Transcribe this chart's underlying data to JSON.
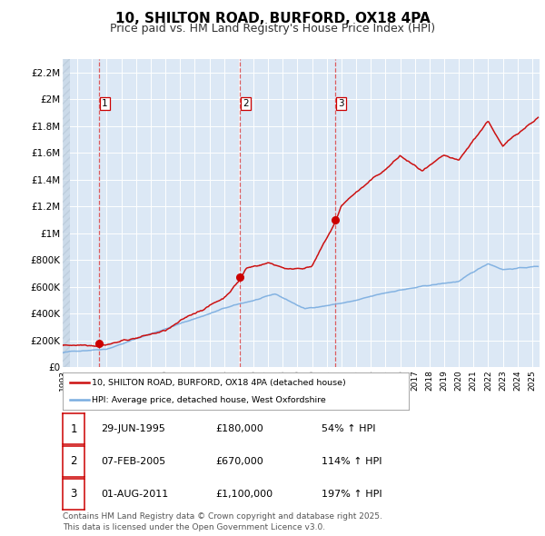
{
  "title": "10, SHILTON ROAD, BURFORD, OX18 4PA",
  "subtitle": "Price paid vs. HM Land Registry's House Price Index (HPI)",
  "title_fontsize": 11,
  "subtitle_fontsize": 9,
  "background_color": "#ffffff",
  "plot_bg_color": "#dce8f5",
  "hatch_color": "#c8d8e8",
  "grid_color": "#ffffff",
  "ylim": [
    0,
    2300000
  ],
  "xlim_start": 1993.0,
  "xlim_end": 2025.5,
  "ytick_labels": [
    "£0",
    "£200K",
    "£400K",
    "£600K",
    "£800K",
    "£1M",
    "£1.2M",
    "£1.4M",
    "£1.6M",
    "£1.8M",
    "£2M",
    "£2.2M"
  ],
  "ytick_values": [
    0,
    200000,
    400000,
    600000,
    800000,
    1000000,
    1200000,
    1400000,
    1600000,
    1800000,
    2000000,
    2200000
  ],
  "sale_dates": [
    1995.5,
    2005.08,
    2011.58
  ],
  "sale_prices": [
    180000,
    670000,
    1100000
  ],
  "sale_labels": [
    "1",
    "2",
    "3"
  ],
  "vline_color": "#dd4444",
  "sale_marker_color": "#cc0000",
  "red_line_color": "#cc1111",
  "blue_line_color": "#7aade0",
  "legend_label_red": "10, SHILTON ROAD, BURFORD, OX18 4PA (detached house)",
  "legend_label_blue": "HPI: Average price, detached house, West Oxfordshire",
  "table_rows": [
    [
      "1",
      "29-JUN-1995",
      "£180,000",
      "54% ↑ HPI"
    ],
    [
      "2",
      "07-FEB-2005",
      "£670,000",
      "114% ↑ HPI"
    ],
    [
      "3",
      "01-AUG-2011",
      "£1,100,000",
      "197% ↑ HPI"
    ]
  ],
  "footnote": "Contains HM Land Registry data © Crown copyright and database right 2025.\nThis data is licensed under the Open Government Licence v3.0.",
  "footnote_fontsize": 6.5
}
